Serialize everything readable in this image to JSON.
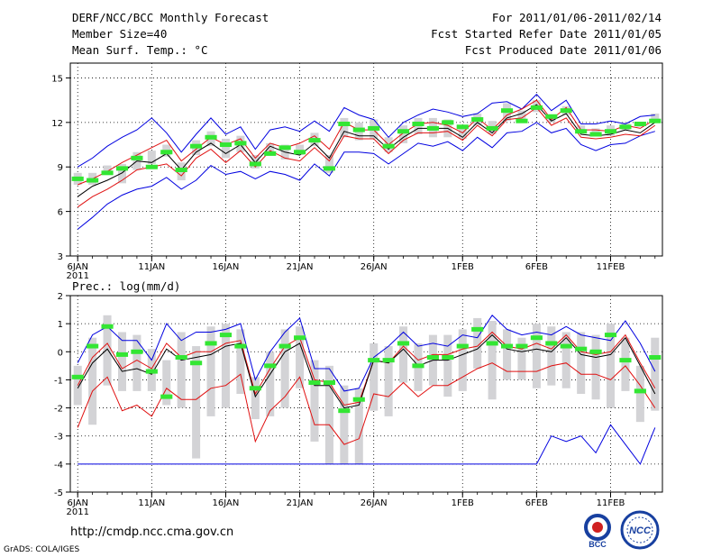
{
  "header": {
    "title": "DERF/NCC/BCC Monthly Forecast",
    "member_size": "Member Size=40",
    "variable": "Mean Surf. Temp.: °C",
    "period": "For 2011/01/06-2011/02/14",
    "refer_date": "Fcst Started Refer Date 2011/01/05",
    "produced_date": "Fcst Produced Date 2011/01/06"
  },
  "precip_label": "Prec.: log(mm/d)",
  "footer": {
    "url": "http://cmdp.ncc.cma.gov.cn",
    "grads": "GrADS: COLA/IGES",
    "logo_bcc": "BCC",
    "logo_ncc": "NCC"
  },
  "colors": {
    "ensemble_box": "#d3d3d6",
    "median_marker": "#33e633",
    "mean_line": "#000000",
    "spread_line": "#e01010",
    "extreme_line": "#0000e0"
  },
  "chart_data": [
    {
      "type": "line",
      "title": "Mean Surf. Temp.: °C",
      "x": [
        1,
        2,
        3,
        4,
        5,
        6,
        7,
        8,
        9,
        10,
        11,
        12,
        13,
        14,
        15,
        16,
        17,
        18,
        19,
        20,
        21,
        22,
        23,
        24,
        25,
        26,
        27,
        28,
        29,
        30,
        31,
        32,
        33,
        34,
        35,
        36,
        37,
        38,
        39,
        40
      ],
      "x_tick_labels": [
        "6JAN",
        "11JAN",
        "16JAN",
        "21JAN",
        "26JAN",
        "1FEB",
        "6FEB",
        "11FEB"
      ],
      "x_tick_positions": [
        1,
        6,
        11,
        16,
        21,
        27,
        32,
        37
      ],
      "x_sublabel": "2011",
      "xlim": [
        0.5,
        40.5
      ],
      "ylim": [
        3,
        16
      ],
      "y_ticks": [
        3,
        6,
        9,
        12,
        15
      ],
      "series": [
        {
          "name": "max",
          "values": [
            9.0,
            9.6,
            10.4,
            11.0,
            11.5,
            12.3,
            11.3,
            10.0,
            11.2,
            12.3,
            11.2,
            11.7,
            10.2,
            11.5,
            11.7,
            11.4,
            12.1,
            11.4,
            13.0,
            12.5,
            12.2,
            11.0,
            12.0,
            12.5,
            12.9,
            12.7,
            12.4,
            12.6,
            13.3,
            13.4,
            12.9,
            13.9,
            12.8,
            13.5,
            11.9,
            11.9,
            12.1,
            11.9,
            12.4,
            12.5
          ]
        },
        {
          "name": "upper",
          "values": [
            7.8,
            8.2,
            8.7,
            9.3,
            9.8,
            10.3,
            10.8,
            9.4,
            10.2,
            11.0,
            10.5,
            10.9,
            9.6,
            10.6,
            10.3,
            10.6,
            11.1,
            10.2,
            12.0,
            11.5,
            11.5,
            10.5,
            11.3,
            11.9,
            12.0,
            11.8,
            11.3,
            12.3,
            11.5,
            12.5,
            12.9,
            13.5,
            12.2,
            13.0,
            11.5,
            11.5,
            11.4,
            11.8,
            11.6,
            12.2
          ]
        },
        {
          "name": "mean",
          "values": [
            7.0,
            7.7,
            8.1,
            8.6,
            9.4,
            9.3,
            9.9,
            8.8,
            10.0,
            10.6,
            9.9,
            10.5,
            9.3,
            10.4,
            10.0,
            9.8,
            10.6,
            9.6,
            11.4,
            11.1,
            11.1,
            10.2,
            11.0,
            11.6,
            11.6,
            11.6,
            11.0,
            12.0,
            11.3,
            12.3,
            12.6,
            13.2,
            12.1,
            12.6,
            11.2,
            11.1,
            11.2,
            11.5,
            11.3,
            12.0
          ]
        },
        {
          "name": "lower",
          "values": [
            6.3,
            7.0,
            7.5,
            8.1,
            8.8,
            9.0,
            9.2,
            8.4,
            9.6,
            10.2,
            9.3,
            10.1,
            9.0,
            10.1,
            9.6,
            9.4,
            10.3,
            9.4,
            11.1,
            10.9,
            10.9,
            9.9,
            10.8,
            11.3,
            11.3,
            11.4,
            10.8,
            11.8,
            11.1,
            12.2,
            12.3,
            13.0,
            11.8,
            12.3,
            11.0,
            10.9,
            11.0,
            11.2,
            11.1,
            11.8
          ]
        },
        {
          "name": "min",
          "values": [
            4.8,
            5.6,
            6.5,
            7.1,
            7.5,
            7.7,
            8.3,
            7.5,
            8.1,
            9.1,
            8.5,
            8.7,
            8.2,
            8.7,
            8.5,
            8.1,
            9.2,
            8.4,
            10.0,
            10.0,
            9.9,
            9.2,
            9.9,
            10.6,
            10.4,
            10.7,
            10.1,
            11.0,
            10.3,
            11.3,
            11.4,
            12.0,
            11.3,
            11.6,
            10.5,
            10.1,
            10.5,
            10.6,
            11.1,
            11.4
          ]
        },
        {
          "name": "median",
          "values": [
            8.2,
            8.1,
            8.6,
            8.9,
            9.6,
            9.0,
            10.0,
            8.8,
            10.4,
            11.0,
            10.5,
            10.6,
            9.2,
            9.9,
            10.3,
            10.0,
            10.8,
            8.9,
            11.9,
            11.5,
            11.6,
            10.4,
            11.4,
            11.9,
            11.6,
            12.0,
            11.7,
            12.2,
            11.6,
            12.8,
            12.1,
            13.0,
            12.4,
            12.8,
            11.4,
            11.2,
            11.4,
            11.7,
            11.9,
            12.1
          ]
        },
        {
          "name": "box_top",
          "values": [
            8.6,
            8.6,
            9.1,
            9.2,
            10.0,
            10.1,
            10.5,
            9.3,
            10.8,
            11.4,
            10.9,
            11.1,
            9.8,
            10.6,
            10.5,
            10.5,
            11.3,
            9.8,
            12.3,
            12.0,
            12.2,
            11.0,
            11.8,
            12.3,
            12.3,
            12.2,
            11.7,
            12.6,
            12.1,
            13.3,
            12.8,
            13.5,
            12.5,
            13.1,
            11.8,
            11.6,
            11.8,
            12.0,
            12.0,
            12.6
          ]
        },
        {
          "name": "box_bottom",
          "values": [
            7.8,
            7.8,
            8.5,
            7.9,
            8.8,
            9.2,
            9.7,
            8.1,
            9.8,
            10.4,
            9.6,
            10.0,
            8.9,
            9.8,
            9.5,
            9.8,
            10.4,
            8.6,
            11.0,
            10.8,
            10.9,
            10.0,
            10.6,
            11.2,
            11.0,
            11.0,
            10.9,
            11.8,
            11.2,
            12.1,
            12.1,
            12.7,
            12.0,
            12.5,
            11.3,
            11.2,
            11.1,
            11.5,
            11.7,
            12.0
          ]
        }
      ]
    },
    {
      "type": "line",
      "title": "Prec.: log(mm/d)",
      "x": [
        1,
        2,
        3,
        4,
        5,
        6,
        7,
        8,
        9,
        10,
        11,
        12,
        13,
        14,
        15,
        16,
        17,
        18,
        19,
        20,
        21,
        22,
        23,
        24,
        25,
        26,
        27,
        28,
        29,
        30,
        31,
        32,
        33,
        34,
        35,
        36,
        37,
        38,
        39,
        40
      ],
      "x_tick_labels": [
        "6JAN",
        "11JAN",
        "16JAN",
        "21JAN",
        "26JAN",
        "1FEB",
        "6FEB",
        "11FEB"
      ],
      "x_tick_positions": [
        1,
        6,
        11,
        16,
        21,
        27,
        32,
        37
      ],
      "x_sublabel": "2011",
      "xlim": [
        0.5,
        40.5
      ],
      "ylim": [
        -5,
        2
      ],
      "y_ticks": [
        -5,
        -4,
        -3,
        -2,
        -1,
        0,
        1,
        2
      ],
      "series": [
        {
          "name": "max",
          "values": [
            -0.4,
            0.6,
            0.9,
            0.4,
            0.4,
            -0.3,
            1.0,
            0.4,
            0.7,
            0.7,
            0.8,
            1.0,
            -1.0,
            0.0,
            0.7,
            1.2,
            -0.6,
            -0.6,
            -1.4,
            -1.3,
            -0.2,
            0.2,
            0.7,
            0.2,
            0.3,
            0.2,
            0.6,
            0.5,
            1.3,
            0.8,
            0.6,
            0.7,
            0.6,
            0.9,
            0.6,
            0.5,
            0.4,
            1.1,
            0.3,
            -0.7
          ]
        },
        {
          "name": "upper",
          "values": [
            -1.2,
            -0.2,
            0.3,
            -0.6,
            -0.3,
            -0.6,
            0.3,
            -0.2,
            0.0,
            0.0,
            0.3,
            0.4,
            -1.5,
            -0.6,
            0.2,
            0.5,
            -1.0,
            -1.1,
            -1.9,
            -1.8,
            -0.3,
            -0.4,
            0.2,
            -0.3,
            -0.1,
            -0.1,
            0.1,
            0.2,
            0.7,
            0.2,
            0.1,
            0.3,
            0.1,
            0.6,
            0.0,
            -0.1,
            0.0,
            0.6,
            -0.4,
            -1.3
          ]
        },
        {
          "name": "mean",
          "values": [
            -1.3,
            -0.4,
            0.1,
            -0.7,
            -0.6,
            -0.8,
            0.1,
            -0.3,
            -0.2,
            -0.1,
            0.2,
            0.3,
            -1.6,
            -0.8,
            0.0,
            0.3,
            -1.2,
            -1.2,
            -2.0,
            -1.9,
            -0.3,
            -0.4,
            0.1,
            -0.5,
            -0.3,
            -0.3,
            -0.1,
            0.1,
            0.6,
            0.1,
            0.0,
            0.1,
            0.0,
            0.5,
            -0.1,
            -0.2,
            -0.1,
            0.5,
            -0.5,
            -1.5
          ]
        },
        {
          "name": "lower",
          "values": [
            -2.7,
            -1.4,
            -0.9,
            -2.1,
            -1.9,
            -2.3,
            -1.3,
            -1.7,
            -1.7,
            -1.3,
            -1.2,
            -0.8,
            -3.2,
            -2.1,
            -1.6,
            -0.9,
            -2.6,
            -2.6,
            -3.3,
            -3.1,
            -1.5,
            -1.6,
            -1.1,
            -1.6,
            -1.2,
            -1.2,
            -0.9,
            -0.6,
            -0.4,
            -0.7,
            -0.7,
            -0.7,
            -0.5,
            -0.4,
            -0.8,
            -0.8,
            -1.0,
            -0.5,
            -1.2,
            -2.0
          ]
        },
        {
          "name": "min",
          "values": [
            -4.0,
            -4.0,
            -4.0,
            -4.0,
            -4.0,
            -4.0,
            -4.0,
            -4.0,
            -4.0,
            -4.0,
            -4.0,
            -4.0,
            -4.0,
            -4.0,
            -4.0,
            -4.0,
            -4.0,
            -4.0,
            -4.0,
            -4.0,
            -4.0,
            -4.0,
            -4.0,
            -4.0,
            -4.0,
            -4.0,
            -4.0,
            -4.0,
            -4.0,
            -4.0,
            -4.0,
            -4.0,
            -3.0,
            -3.2,
            -3.0,
            -3.6,
            -2.6,
            -3.3,
            -4.0,
            -2.7
          ]
        },
        {
          "name": "median",
          "values": [
            -0.9,
            0.2,
            0.9,
            -0.1,
            0.0,
            -0.7,
            -1.6,
            -0.2,
            -0.4,
            0.3,
            0.6,
            0.2,
            -1.3,
            -0.5,
            0.2,
            0.5,
            -1.1,
            -1.1,
            -2.1,
            -1.7,
            -0.3,
            -0.3,
            0.3,
            -0.5,
            -0.2,
            -0.2,
            0.2,
            0.8,
            0.3,
            0.2,
            0.2,
            0.5,
            0.3,
            0.2,
            0.1,
            0.0,
            0.6,
            -0.3,
            -1.4,
            -0.2
          ]
        },
        {
          "name": "box_top",
          "values": [
            -0.5,
            0.5,
            1.3,
            0.7,
            0.6,
            0.1,
            -0.3,
            0.7,
            0.2,
            0.9,
            1.0,
            0.8,
            -0.9,
            0.0,
            0.8,
            0.9,
            -0.3,
            -0.5,
            -1.2,
            -1.3,
            0.3,
            0.2,
            0.9,
            0.3,
            0.6,
            0.6,
            0.8,
            1.2,
            1.1,
            0.8,
            0.5,
            1.0,
            0.9,
            0.7,
            0.7,
            0.6,
            1.0,
            0.5,
            -0.5,
            0.5
          ]
        },
        {
          "name": "box_bottom",
          "values": [
            -1.9,
            -2.6,
            -1.2,
            -1.4,
            -1.4,
            -1.4,
            -1.9,
            -2.0,
            -3.8,
            -2.3,
            -2.0,
            -1.5,
            -2.4,
            -2.3,
            -2.0,
            -1.3,
            -3.2,
            -4.0,
            -4.0,
            -4.0,
            -2.1,
            -2.3,
            -1.1,
            -1.4,
            -1.2,
            -1.6,
            -1.4,
            -0.6,
            -1.7,
            -1.0,
            -1.0,
            -1.3,
            -1.2,
            -1.3,
            -1.5,
            -1.7,
            -2.0,
            -1.4,
            -2.5,
            -2.1
          ]
        }
      ]
    }
  ]
}
